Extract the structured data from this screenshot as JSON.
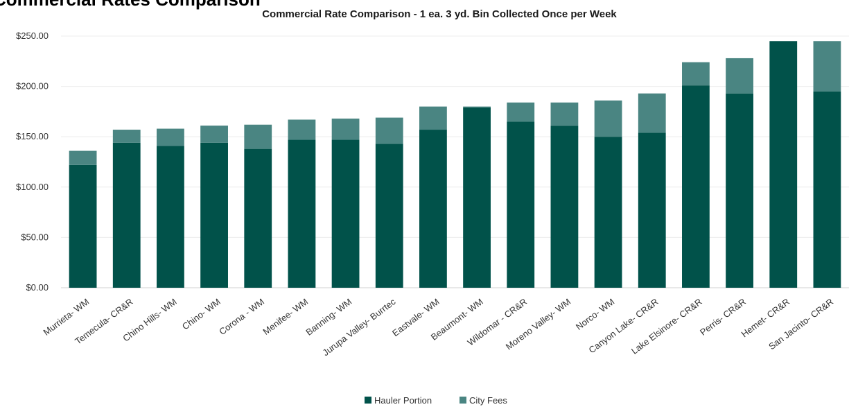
{
  "cropped_heading": "Commercial Rates Comparison",
  "chart_data": {
    "type": "bar",
    "stacked": true,
    "title": "Commercial Rate Comparison - 1 ea. 3 yd. Bin Collected Once per Week",
    "xlabel": "",
    "ylabel": "",
    "ylim": [
      0,
      250
    ],
    "yticks": [
      0,
      50,
      100,
      150,
      200,
      250
    ],
    "ytick_labels": [
      "$0.00",
      "$50.00",
      "$100.00",
      "$150.00",
      "$200.00",
      "$250.00"
    ],
    "grid": true,
    "legend_position": "bottom",
    "categories": [
      "Murrieta- WM",
      "Temecula- CR&R",
      "Chino Hills- WM",
      "Chino- WM",
      "Corona - WM",
      "Menifee- WM",
      "Banning- WM",
      "Jurupa Valley- Burrtec",
      "Eastvale- WM",
      "Beaumont- WM",
      "Wildomar - CR&R",
      "Moreno Valley- WM",
      "Norco- WM",
      "Canyon Lake- CR&R",
      "Lake Elsinore- CR&R",
      "Perris- CR&R",
      "Hemet- CR&R",
      "San Jacinto- CR&R"
    ],
    "series": [
      {
        "name": "Hauler Portion",
        "color": "#01524a",
        "values": [
          122,
          144,
          141,
          144,
          138,
          147,
          147,
          143,
          157,
          179,
          165,
          161,
          150,
          154,
          201,
          193,
          245,
          195
        ]
      },
      {
        "name": "City Fees",
        "color": "#4a8582",
        "values": [
          14,
          13,
          17,
          17,
          24,
          20,
          21,
          26,
          23,
          1,
          19,
          23,
          36,
          39,
          23,
          35,
          0,
          50
        ]
      }
    ]
  }
}
